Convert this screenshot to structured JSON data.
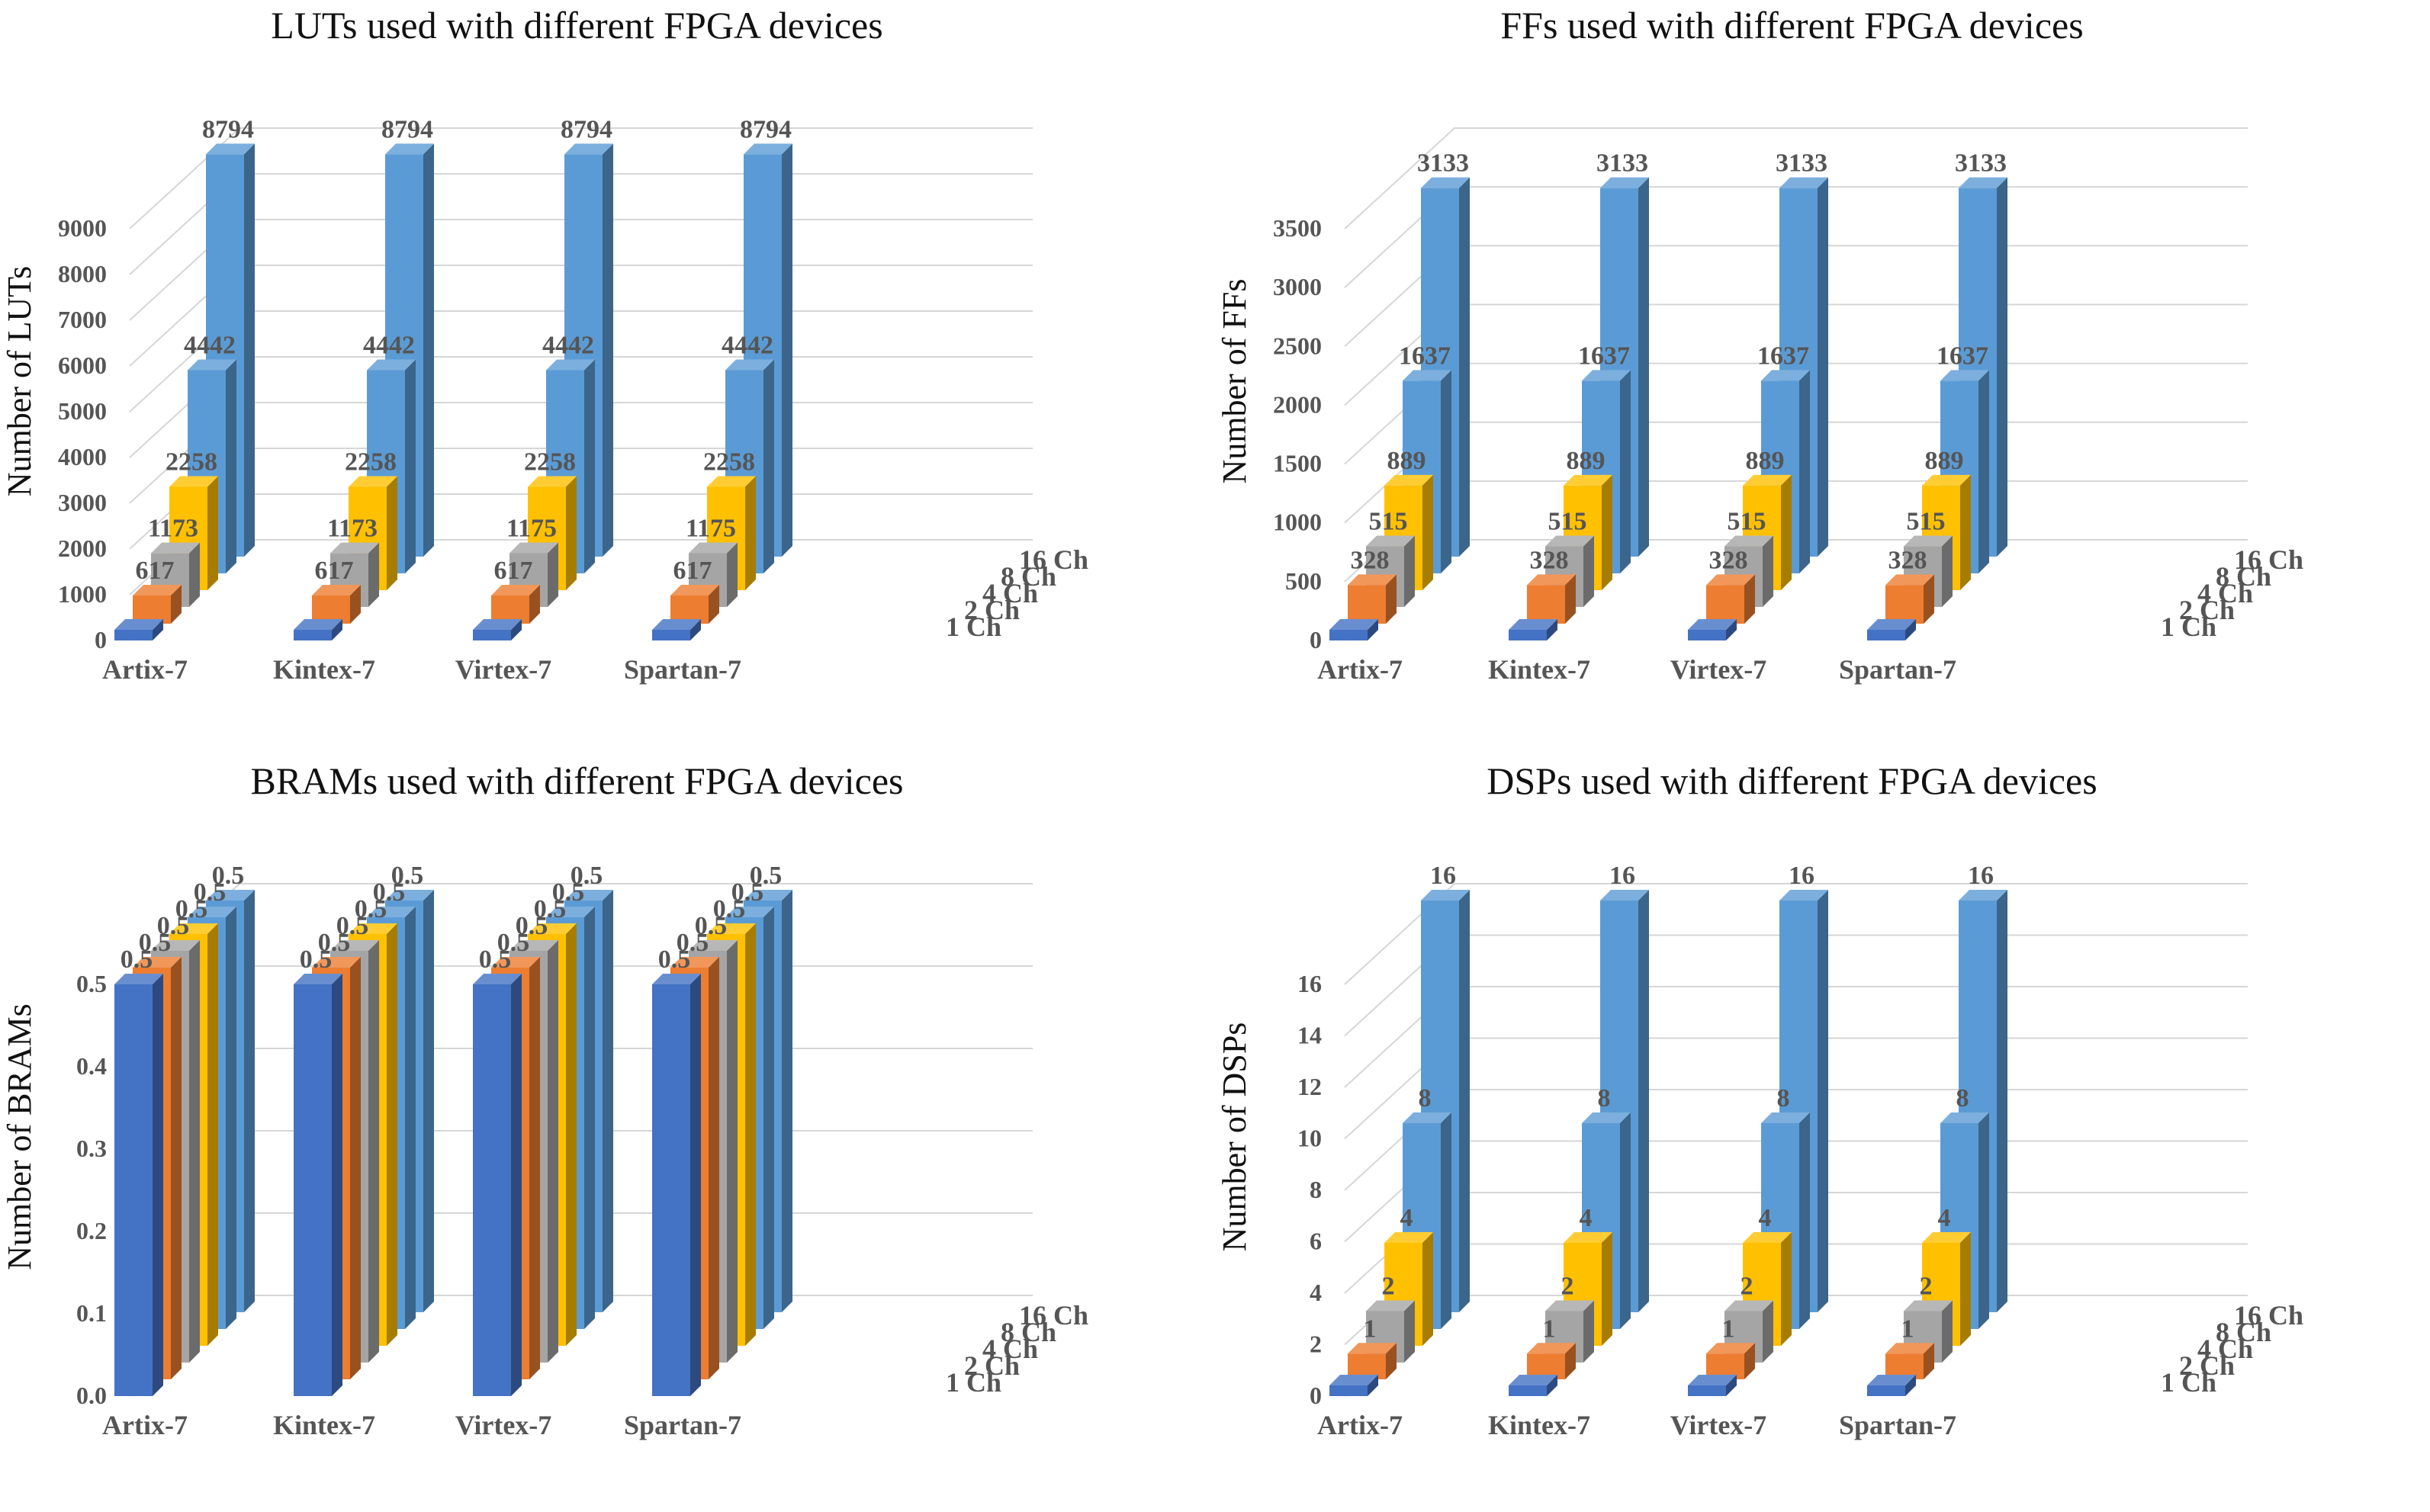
{
  "colors": {
    "1 Ch": "#4472c4",
    "2 Ch": "#ed7d31",
    "4 Ch": "#a5a5a5",
    "8 Ch": "#ffc000",
    "16 Ch": "#5b9bd5"
  },
  "chart_data": [
    {
      "type": "bar",
      "title": "LUTs used with different FPGA devices",
      "ylabel": "Number of LUTs",
      "xlabel": "",
      "ylim": [
        0,
        9000
      ],
      "yticks": [
        "0",
        "1000",
        "2000",
        "3000",
        "4000",
        "5000",
        "6000",
        "7000",
        "8000",
        "9000"
      ],
      "categories": [
        "Artix-7",
        "Kintex-7",
        "Virtex-7",
        "Spartan-7"
      ],
      "series": [
        {
          "name": "1 Ch",
          "values": [
            0,
            0,
            0,
            0
          ],
          "labels": [
            "",
            "",
            "",
            ""
          ]
        },
        {
          "name": "2 Ch",
          "values": [
            617,
            617,
            617,
            617
          ],
          "labels": [
            "617",
            "617",
            "617",
            "617"
          ]
        },
        {
          "name": "4 Ch",
          "values": [
            1173,
            1173,
            1175,
            1175
          ],
          "labels": [
            "1173",
            "1173",
            "1175",
            "1175"
          ]
        },
        {
          "name": "8 Ch",
          "values": [
            2258,
            2258,
            2258,
            2258
          ],
          "labels": [
            "2258",
            "2258",
            "2258",
            "2258"
          ]
        },
        {
          "name": "16 Ch",
          "values": [
            4442,
            4442,
            4442,
            4442
          ],
          "labels": [
            "4442",
            "4442",
            "4442",
            "4442"
          ]
        },
        {
          "name": "",
          "values": [
            8794,
            8794,
            8794,
            8794
          ],
          "labels": [
            "8794",
            "8794",
            "8794",
            "8794"
          ]
        }
      ]
    },
    {
      "type": "bar",
      "title": "FFs used with different FPGA devices",
      "ylabel": "Number of FFs",
      "xlabel": "",
      "ylim": [
        0,
        3500
      ],
      "yticks": [
        "0",
        "500",
        "1000",
        "1500",
        "2000",
        "2500",
        "3000",
        "3500"
      ],
      "categories": [
        "Artix-7",
        "Kintex-7",
        "Virtex-7",
        "Spartan-7"
      ],
      "series": [
        {
          "name": "1 Ch",
          "values": [
            0,
            0,
            0,
            0
          ],
          "labels": [
            "",
            "",
            "",
            ""
          ]
        },
        {
          "name": "2 Ch",
          "values": [
            328,
            328,
            328,
            328
          ],
          "labels": [
            "328",
            "328",
            "328",
            "328"
          ]
        },
        {
          "name": "4 Ch",
          "values": [
            515,
            515,
            515,
            515
          ],
          "labels": [
            "515",
            "515",
            "515",
            "515"
          ]
        },
        {
          "name": "8 Ch",
          "values": [
            889,
            889,
            889,
            889
          ],
          "labels": [
            "889",
            "889",
            "889",
            "889"
          ]
        },
        {
          "name": "16 Ch",
          "values": [
            1637,
            1637,
            1637,
            1637
          ],
          "labels": [
            "1637",
            "1637",
            "1637",
            "1637"
          ]
        },
        {
          "name": "",
          "values": [
            3133,
            3133,
            3133,
            3133
          ],
          "labels": [
            "3133",
            "3133",
            "3133",
            "3133"
          ]
        }
      ]
    },
    {
      "type": "bar",
      "title": "BRAMs used with different FPGA devices",
      "ylabel": "Number of BRAMs",
      "xlabel": "",
      "ylim": [
        0,
        0.5
      ],
      "yticks": [
        "0.0",
        "0.1",
        "0.2",
        "0.3",
        "0.4",
        "0.5"
      ],
      "categories": [
        "Artix-7",
        "Kintex-7",
        "Virtex-7",
        "Spartan-7"
      ],
      "series": [
        {
          "name": "1 Ch",
          "values": [
            0.5,
            0.5,
            0.5,
            0.5
          ],
          "labels": [
            "0.5",
            "0.5",
            "0.5",
            "0.5"
          ]
        },
        {
          "name": "2 Ch",
          "values": [
            0.5,
            0.5,
            0.5,
            0.5
          ],
          "labels": [
            "0.5",
            "0.5",
            "0.5",
            "0.5"
          ]
        },
        {
          "name": "4 Ch",
          "values": [
            0.5,
            0.5,
            0.5,
            0.5
          ],
          "labels": [
            "0.5",
            "0.5",
            "0.5",
            "0.5"
          ]
        },
        {
          "name": "8 Ch",
          "values": [
            0.5,
            0.5,
            0.5,
            0.5
          ],
          "labels": [
            "0.5",
            "0.5",
            "0.5",
            "0.5"
          ]
        },
        {
          "name": "16 Ch",
          "values": [
            0.5,
            0.5,
            0.5,
            0.5
          ],
          "labels": [
            "0.5",
            "0.5",
            "0.5",
            "0.5"
          ]
        },
        {
          "name": "",
          "values": [
            0.5,
            0.5,
            0.5,
            0.5
          ],
          "labels": [
            "0.5",
            "0.5",
            "0.5",
            "0.5"
          ]
        }
      ]
    },
    {
      "type": "bar",
      "title": "DSPs used with different FPGA devices",
      "ylabel": "Number of DSPs",
      "xlabel": "",
      "ylim": [
        0,
        16
      ],
      "yticks": [
        "0",
        "2",
        "4",
        "6",
        "8",
        "10",
        "12",
        "14",
        "16"
      ],
      "categories": [
        "Artix-7",
        "Kintex-7",
        "Virtex-7",
        "Spartan-7"
      ],
      "series": [
        {
          "name": "1 Ch",
          "values": [
            0,
            0,
            0,
            0
          ],
          "labels": [
            "",
            "",
            "",
            ""
          ]
        },
        {
          "name": "2 Ch",
          "values": [
            1,
            1,
            1,
            1
          ],
          "labels": [
            "1",
            "1",
            "1",
            "1"
          ]
        },
        {
          "name": "4 Ch",
          "values": [
            2,
            2,
            2,
            2
          ],
          "labels": [
            "2",
            "2",
            "2",
            "2"
          ]
        },
        {
          "name": "8 Ch",
          "values": [
            4,
            4,
            4,
            4
          ],
          "labels": [
            "4",
            "4",
            "4",
            "4"
          ]
        },
        {
          "name": "16 Ch",
          "values": [
            8,
            8,
            8,
            8
          ],
          "labels": [
            "8",
            "8",
            "8",
            "8"
          ]
        },
        {
          "name": "",
          "values": [
            16,
            16,
            16,
            16
          ],
          "labels": [
            "16",
            "16",
            "16",
            "16"
          ]
        }
      ]
    }
  ]
}
